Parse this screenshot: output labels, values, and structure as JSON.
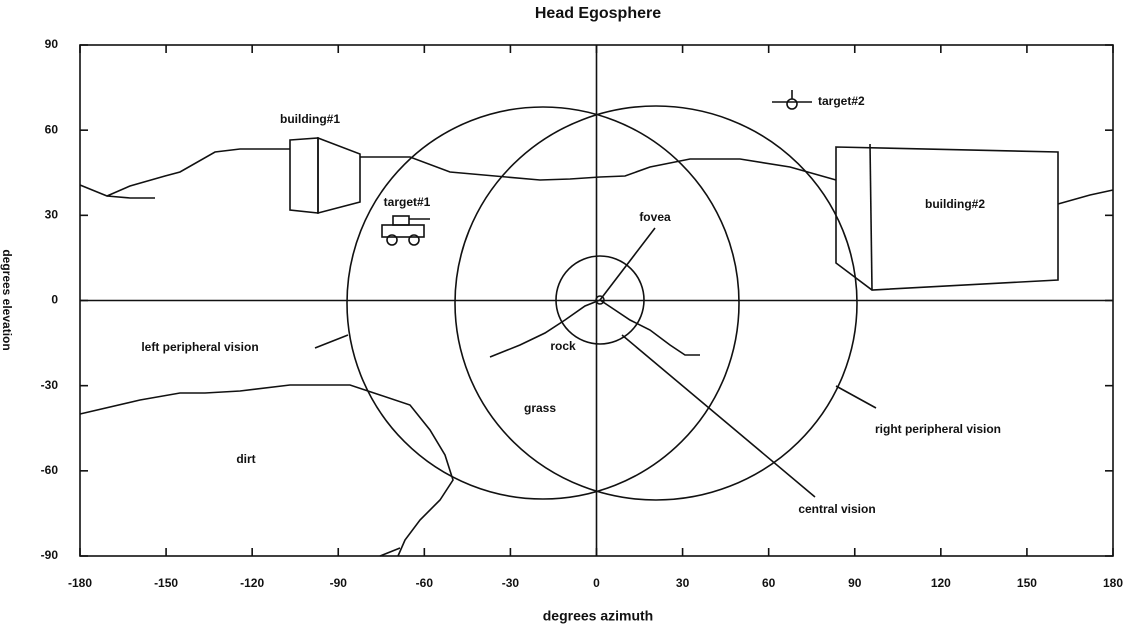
{
  "chart_data": {
    "type": "diagram",
    "title": "Head Egosphere",
    "x_label": "degrees azimuth",
    "y_label": "degrees elevation",
    "xlim": [
      -180,
      180
    ],
    "ylim": [
      -90,
      90
    ],
    "xticks": [
      -180,
      -150,
      -120,
      -90,
      -60,
      -30,
      0,
      30,
      60,
      90,
      120,
      150,
      180
    ],
    "yticks": [
      -90,
      -60,
      -30,
      0,
      30,
      60,
      90
    ],
    "annotations": [
      "building#1",
      "target#1",
      "target#2",
      "building#2",
      "fovea",
      "rock",
      "grass",
      "left peripheral vision",
      "right peripheral vision",
      "central vision",
      "dirt"
    ]
  }
}
